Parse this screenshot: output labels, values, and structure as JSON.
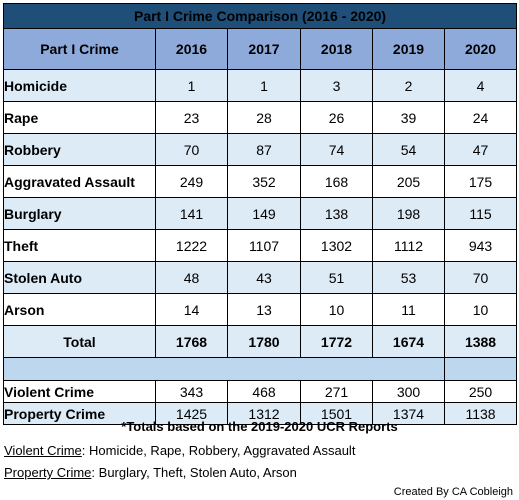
{
  "table": {
    "title": "Part I Crime Comparison (2016 - 2020)",
    "headers": [
      "Part I Crime",
      "2016",
      "2017",
      "2018",
      "2019",
      "2020"
    ],
    "rows": [
      {
        "label": "Homicide",
        "values": [
          "1",
          "1",
          "3",
          "2",
          "4"
        ]
      },
      {
        "label": "Rape",
        "values": [
          "23",
          "28",
          "26",
          "39",
          "24"
        ]
      },
      {
        "label": "Robbery",
        "values": [
          "70",
          "87",
          "74",
          "54",
          "47"
        ]
      },
      {
        "label": "Aggravated Assault",
        "values": [
          "249",
          "352",
          "168",
          "205",
          "175"
        ]
      },
      {
        "label": "Burglary",
        "values": [
          "141",
          "149",
          "138",
          "198",
          "115"
        ]
      },
      {
        "label": "Theft",
        "values": [
          "1222",
          "1107",
          "1302",
          "1112",
          "943"
        ]
      },
      {
        "label": "Stolen Auto",
        "values": [
          "48",
          "43",
          "51",
          "53",
          "70"
        ]
      },
      {
        "label": "Arson",
        "values": [
          "14",
          "13",
          "10",
          "11",
          "10"
        ]
      }
    ],
    "total": {
      "label": "Total",
      "values": [
        "1768",
        "1780",
        "1772",
        "1674",
        "1388"
      ]
    },
    "summary": [
      {
        "label": "Violent Crime",
        "values": [
          "343",
          "468",
          "271",
          "300",
          "250"
        ]
      },
      {
        "label": "Property Crime",
        "values": [
          "1425",
          "1312",
          "1501",
          "1374",
          "1138"
        ]
      }
    ]
  },
  "footnote": "*Totals based on the 2019-2020 UCR Reports",
  "legend": {
    "violent": {
      "term": "Violent Crime",
      "definition": ": Homicide, Rape, Robbery, Aggravated Assault"
    },
    "property": {
      "term": "Property Crime",
      "definition": ": Burglary, Theft, Stolen Auto, Arson"
    }
  },
  "credit": "Created By CA Cobleigh",
  "colors": {
    "title_bg": "#1f4e79",
    "header_bg": "#8eaadb",
    "shaded_row": "#ddebf7",
    "spacer_row": "#bdd7ee"
  }
}
